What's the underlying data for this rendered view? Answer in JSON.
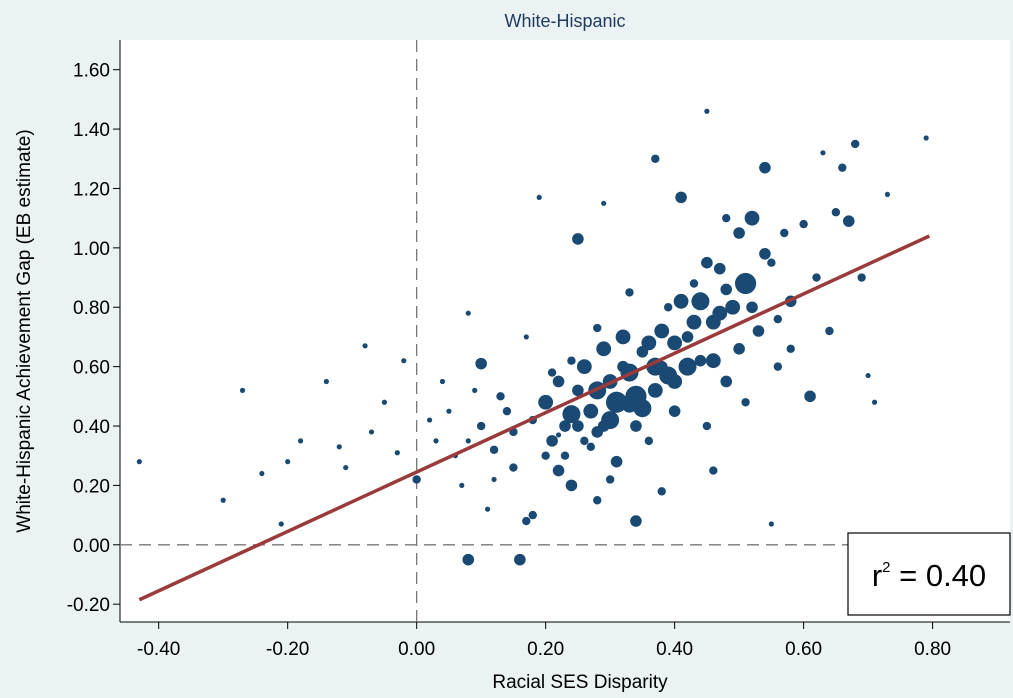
{
  "chart_data": {
    "type": "scatter",
    "title": "White-Hispanic",
    "xlabel": "Racial SES Disparity",
    "ylabel": "White-Hispanic Achievement Gap (EB estimate)",
    "xlim": [
      -0.46,
      0.92
    ],
    "ylim": [
      -0.26,
      1.7
    ],
    "x_ticks": [
      "-0.40",
      "-0.20",
      "0.00",
      "0.20",
      "0.40",
      "0.60",
      "0.80"
    ],
    "x_tick_values": [
      -0.4,
      -0.2,
      0.0,
      0.2,
      0.4,
      0.6,
      0.8
    ],
    "y_ticks": [
      "-0.20",
      "0.00",
      "0.20",
      "0.40",
      "0.60",
      "0.80",
      "1.00",
      "1.20",
      "1.40",
      "1.60"
    ],
    "y_tick_values": [
      -0.2,
      0.0,
      0.2,
      0.4,
      0.6,
      0.8,
      1.0,
      1.2,
      1.4,
      1.6
    ],
    "reference_lines": {
      "x": 0.0,
      "y": 0.0,
      "style": "dashed"
    },
    "fit_line": {
      "x": [
        -0.43,
        0.795
      ],
      "y": [
        -0.185,
        1.04
      ]
    },
    "annotation": {
      "base": "r",
      "sup": "2",
      "text": " = 0.40"
    },
    "colors": {
      "points": "#1a4a73",
      "fit": "#9b3a3a",
      "plot_bg": "#ffffff",
      "page_bg": "#eaf2f3",
      "title": "#1e3a5f"
    },
    "points": [
      [
        -0.43,
        0.28,
        1
      ],
      [
        -0.3,
        0.15,
        1
      ],
      [
        -0.27,
        0.52,
        1
      ],
      [
        -0.24,
        0.24,
        1
      ],
      [
        -0.21,
        0.07,
        1
      ],
      [
        -0.2,
        0.28,
        1
      ],
      [
        -0.18,
        0.35,
        1
      ],
      [
        -0.14,
        0.55,
        1
      ],
      [
        -0.12,
        0.33,
        1
      ],
      [
        -0.11,
        0.26,
        1
      ],
      [
        -0.08,
        0.67,
        1
      ],
      [
        -0.07,
        0.38,
        1
      ],
      [
        -0.05,
        0.48,
        1
      ],
      [
        -0.03,
        0.31,
        1
      ],
      [
        -0.02,
        0.62,
        1
      ],
      [
        0.0,
        0.22,
        2
      ],
      [
        0.02,
        0.42,
        1
      ],
      [
        0.04,
        0.55,
        1
      ],
      [
        0.06,
        0.3,
        1
      ],
      [
        0.08,
        0.78,
        1
      ],
      [
        0.08,
        -0.05,
        3
      ],
      [
        0.1,
        0.61,
        3
      ],
      [
        0.11,
        0.12,
        1
      ],
      [
        0.13,
        0.5,
        2
      ],
      [
        0.15,
        0.26,
        2
      ],
      [
        0.16,
        -0.05,
        3
      ],
      [
        0.17,
        0.7,
        1
      ],
      [
        0.17,
        0.08,
        2
      ],
      [
        0.18,
        0.42,
        2
      ],
      [
        0.19,
        1.17,
        1
      ],
      [
        0.2,
        0.3,
        2
      ],
      [
        0.21,
        0.58,
        2
      ],
      [
        0.22,
        0.25,
        3
      ],
      [
        0.22,
        0.37,
        1
      ],
      [
        0.23,
        0.4,
        3
      ],
      [
        0.24,
        0.62,
        2
      ],
      [
        0.25,
        1.03,
        3
      ],
      [
        0.25,
        0.52,
        3
      ],
      [
        0.26,
        0.35,
        2
      ],
      [
        0.27,
        0.45,
        4
      ],
      [
        0.28,
        0.73,
        2
      ],
      [
        0.28,
        0.38,
        3
      ],
      [
        0.29,
        1.15,
        1
      ],
      [
        0.3,
        0.55,
        4
      ],
      [
        0.31,
        0.28,
        3
      ],
      [
        0.32,
        0.6,
        3
      ],
      [
        0.33,
        0.47,
        4
      ],
      [
        0.33,
        0.85,
        2
      ],
      [
        0.34,
        0.4,
        3
      ],
      [
        0.35,
        0.65,
        3
      ],
      [
        0.36,
        0.35,
        2
      ],
      [
        0.37,
        1.3,
        2
      ],
      [
        0.37,
        0.52,
        4
      ],
      [
        0.38,
        0.6,
        3
      ],
      [
        0.39,
        0.8,
        2
      ],
      [
        0.4,
        0.55,
        4
      ],
      [
        0.4,
        0.45,
        3
      ],
      [
        0.41,
        1.17,
        3
      ],
      [
        0.42,
        0.7,
        3
      ],
      [
        0.43,
        0.88,
        2
      ],
      [
        0.44,
        0.62,
        3
      ],
      [
        0.45,
        1.46,
        1
      ],
      [
        0.45,
        0.4,
        2
      ],
      [
        0.46,
        0.75,
        4
      ],
      [
        0.47,
        0.93,
        3
      ],
      [
        0.48,
        1.1,
        2
      ],
      [
        0.48,
        0.55,
        3
      ],
      [
        0.49,
        0.8,
        4
      ],
      [
        0.5,
        1.05,
        3
      ],
      [
        0.51,
        0.88,
        6
      ],
      [
        0.51,
        0.48,
        2
      ],
      [
        0.52,
        1.1,
        4
      ],
      [
        0.53,
        0.72,
        3
      ],
      [
        0.54,
        1.27,
        3
      ],
      [
        0.55,
        0.95,
        2
      ],
      [
        0.56,
        0.6,
        2
      ],
      [
        0.57,
        1.05,
        2
      ],
      [
        0.58,
        0.82,
        3
      ],
      [
        0.6,
        1.08,
        2
      ],
      [
        0.61,
        0.5,
        3
      ],
      [
        0.62,
        0.9,
        2
      ],
      [
        0.63,
        1.32,
        1
      ],
      [
        0.64,
        0.72,
        2
      ],
      [
        0.65,
        1.12,
        2
      ],
      [
        0.66,
        1.27,
        2
      ],
      [
        0.67,
        1.09,
        3
      ],
      [
        0.68,
        1.35,
        2
      ],
      [
        0.69,
        0.9,
        2
      ],
      [
        0.7,
        0.57,
        1
      ],
      [
        0.71,
        0.48,
        1
      ],
      [
        0.73,
        1.18,
        1
      ],
      [
        0.79,
        1.37,
        1
      ],
      [
        0.18,
        0.1,
        2
      ],
      [
        0.24,
        0.2,
        3
      ],
      [
        0.28,
        0.15,
        2
      ],
      [
        0.3,
        0.22,
        2
      ],
      [
        0.34,
        0.08,
        3
      ],
      [
        0.38,
        0.18,
        2
      ],
      [
        0.46,
        0.25,
        2
      ],
      [
        0.55,
        0.07,
        1
      ],
      [
        0.2,
        0.48,
        4
      ],
      [
        0.22,
        0.55,
        3
      ],
      [
        0.24,
        0.44,
        5
      ],
      [
        0.26,
        0.6,
        4
      ],
      [
        0.28,
        0.52,
        5
      ],
      [
        0.29,
        0.66,
        4
      ],
      [
        0.3,
        0.42,
        5
      ],
      [
        0.31,
        0.48,
        6
      ],
      [
        0.32,
        0.7,
        4
      ],
      [
        0.33,
        0.58,
        5
      ],
      [
        0.34,
        0.5,
        6
      ],
      [
        0.35,
        0.46,
        5
      ],
      [
        0.36,
        0.68,
        4
      ],
      [
        0.37,
        0.6,
        5
      ],
      [
        0.38,
        0.72,
        4
      ],
      [
        0.39,
        0.57,
        5
      ],
      [
        0.4,
        0.68,
        4
      ],
      [
        0.41,
        0.82,
        4
      ],
      [
        0.42,
        0.6,
        5
      ],
      [
        0.43,
        0.75,
        4
      ],
      [
        0.44,
        0.82,
        5
      ],
      [
        0.45,
        0.95,
        3
      ],
      [
        0.46,
        0.62,
        4
      ],
      [
        0.47,
        0.78,
        4
      ],
      [
        0.48,
        0.86,
        3
      ],
      [
        0.5,
        0.66,
        3
      ],
      [
        0.52,
        0.8,
        3
      ],
      [
        0.54,
        0.98,
        3
      ],
      [
        0.56,
        0.76,
        2
      ],
      [
        0.58,
        0.66,
        2
      ],
      [
        0.21,
        0.35,
        3
      ],
      [
        0.23,
        0.3,
        2
      ],
      [
        0.25,
        0.4,
        3
      ],
      [
        0.27,
        0.33,
        2
      ],
      [
        0.29,
        0.4,
        3
      ],
      [
        0.15,
        0.38,
        2
      ],
      [
        0.14,
        0.45,
        2
      ],
      [
        0.12,
        0.32,
        2
      ],
      [
        0.1,
        0.4,
        2
      ],
      [
        0.08,
        0.35,
        1
      ],
      [
        0.05,
        0.45,
        1
      ],
      [
        0.07,
        0.2,
        1
      ],
      [
        0.12,
        0.22,
        1
      ],
      [
        0.09,
        0.52,
        1
      ],
      [
        0.03,
        0.35,
        1
      ]
    ]
  }
}
